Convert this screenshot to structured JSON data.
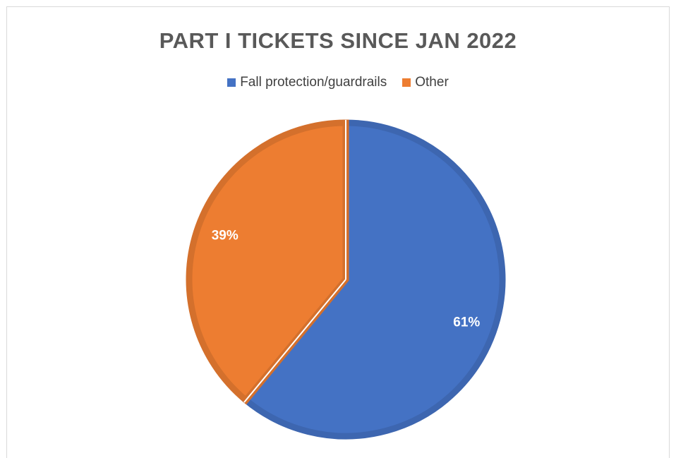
{
  "chart_data": {
    "type": "pie",
    "title": "PART I TICKETS SINCE JAN 2022",
    "legend_position": "top",
    "slices": [
      {
        "label": "Fall protection/guardrails",
        "value": 61,
        "display": "61%",
        "color": "#4472C4",
        "edge": "#3d66b0"
      },
      {
        "label": "Other",
        "value": 39,
        "display": "39%",
        "color": "#ED7D31",
        "edge": "#d4702c"
      }
    ]
  }
}
